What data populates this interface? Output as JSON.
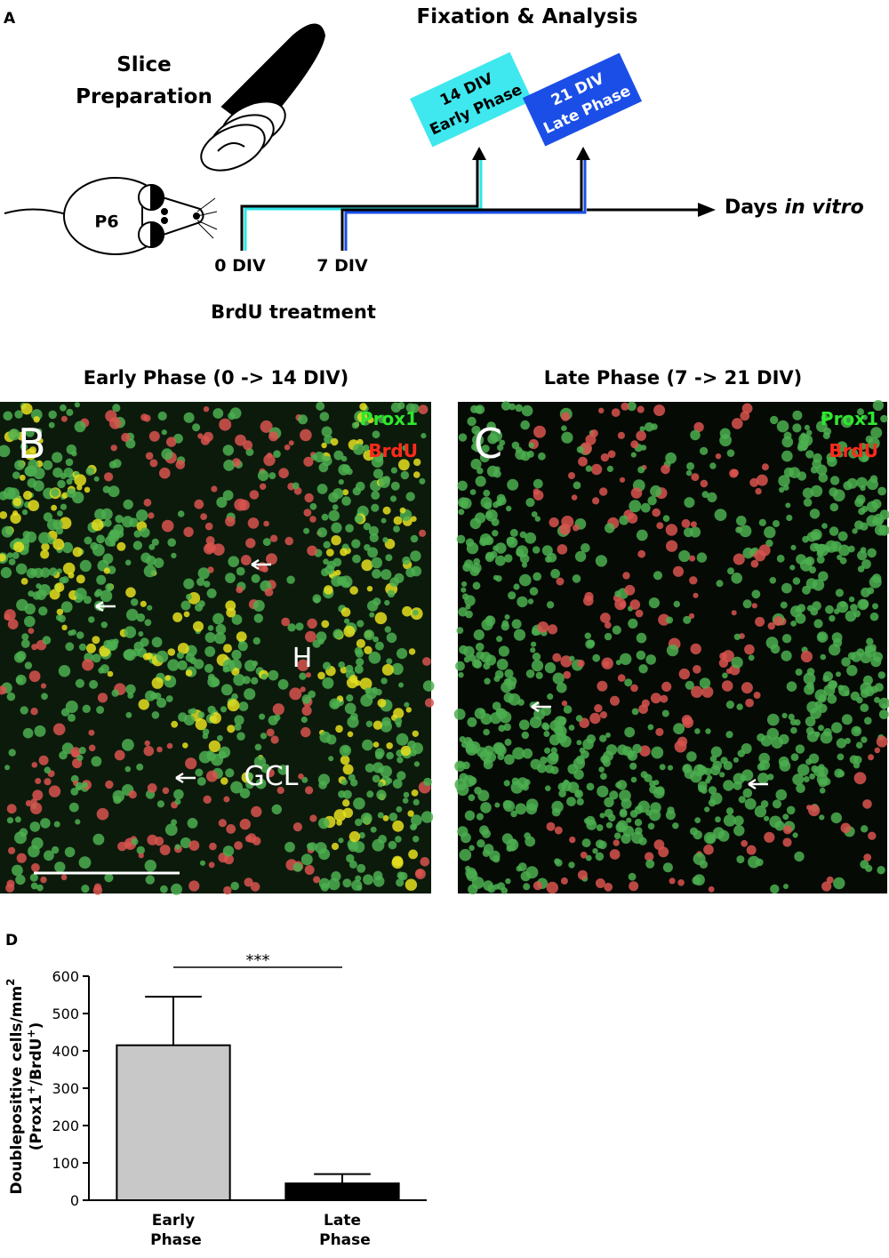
{
  "panel_a": {
    "label": "A",
    "slice_title": [
      "Slice",
      "Preparation"
    ],
    "mouse_label": "P6",
    "fixation_title": "Fixation & Analysis",
    "early_box": [
      "14 DIV",
      "Early Phase"
    ],
    "late_box": [
      "21 DIV",
      "Late Phase"
    ],
    "axis_label": [
      "Days ",
      "in vitro"
    ],
    "start_ticks": [
      "0 DIV",
      "7 DIV"
    ],
    "treatment": "BrdU treatment"
  },
  "panel_b": {
    "label": "B",
    "title": "Early Phase (0 -> 14 DIV)",
    "stains": [
      "Prox1",
      "BrdU"
    ],
    "regions": [
      "H",
      "GCL"
    ]
  },
  "panel_c": {
    "label": "C",
    "title": "Late Phase (7 -> 21 DIV)",
    "stains": [
      "Prox1",
      "BrdU"
    ]
  },
  "chart_data": {
    "type": "bar",
    "panel_label": "D",
    "y_label": {
      "line1": "Doublepositive cells/mm",
      "line1_sup": "2",
      "line2": [
        "(Prox1",
        "+",
        "/BrdU",
        "+",
        ")"
      ]
    },
    "categories": [
      "Early Phase",
      "Late Phase"
    ],
    "values": [
      415,
      45
    ],
    "errors": [
      130,
      25
    ],
    "colors": [
      "#c8c8c8",
      "#000000"
    ],
    "significance": "***",
    "ylim": [
      0,
      600
    ],
    "yticks": [
      0,
      100,
      200,
      300,
      400,
      500,
      600
    ]
  }
}
